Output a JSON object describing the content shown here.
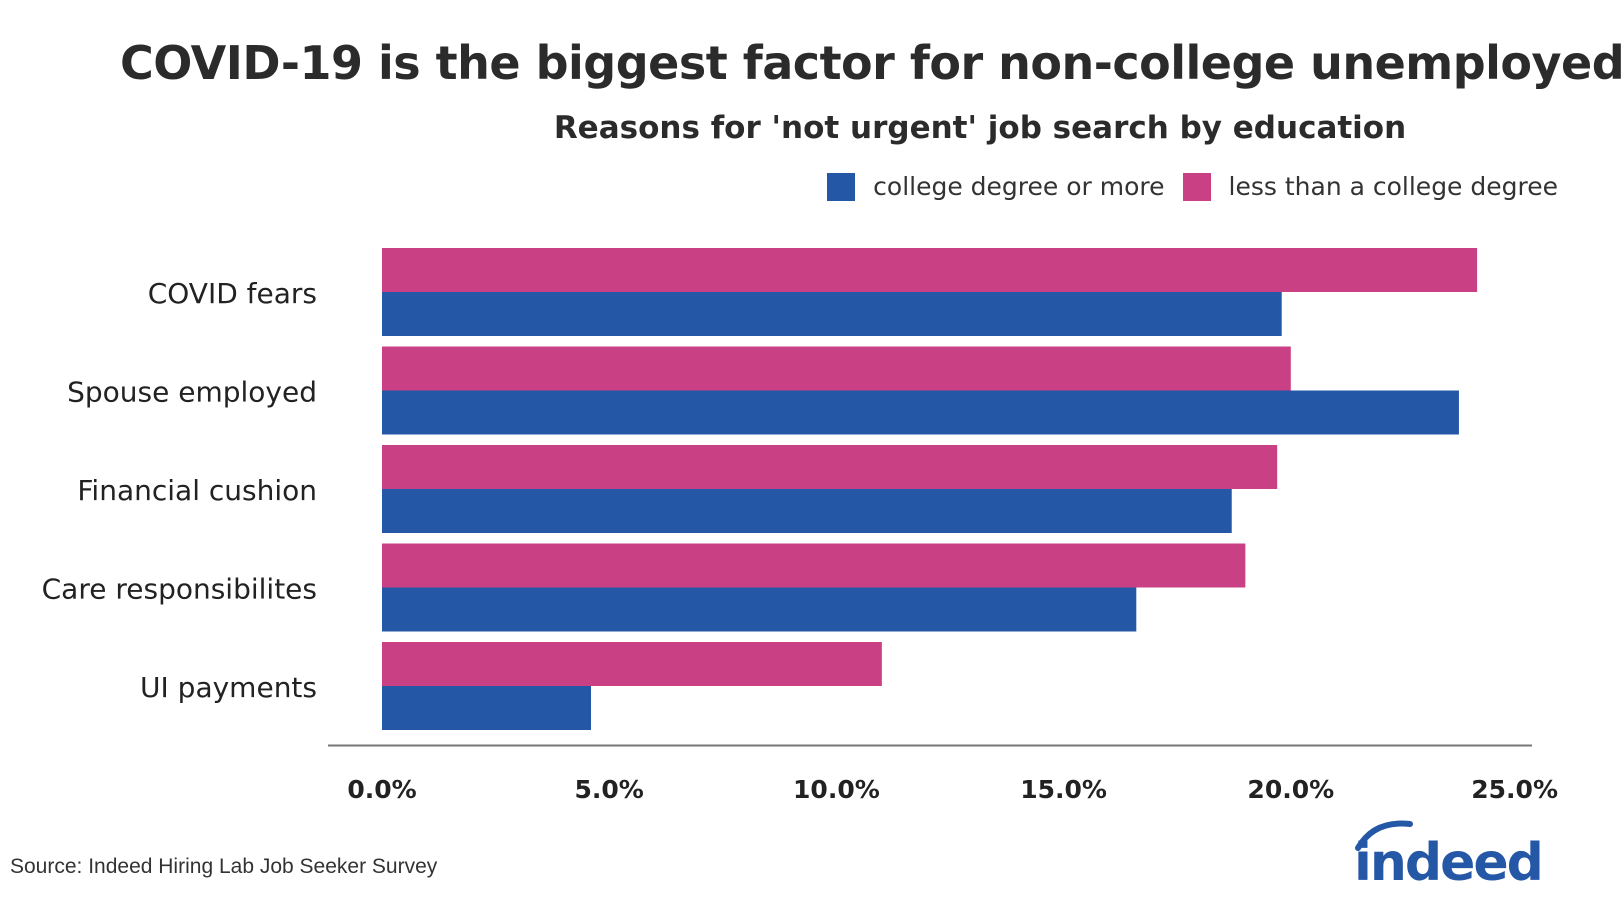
{
  "chart_data": {
    "type": "bar",
    "orientation": "horizontal",
    "title": "COVID-19 is the biggest factor for non-college unemployed",
    "subtitle": "Reasons for 'not urgent' job search by education",
    "categories": [
      "COVID fears",
      "Spouse employed",
      "Financial cushion",
      "Care responsibilites",
      "UI payments"
    ],
    "series": [
      {
        "name": "less than a college degree",
        "color": "#c94085",
        "values": [
          24.1,
          20.0,
          19.7,
          19.0,
          11.0
        ]
      },
      {
        "name": "college degree or more",
        "color": "#2557a7",
        "values": [
          19.8,
          23.7,
          18.7,
          16.6,
          4.6
        ]
      }
    ],
    "xlim": [
      0,
      25
    ],
    "xticks": [
      "0.0%",
      "5.0%",
      "10.0%",
      "15.0%",
      "20.0%",
      "25.0%"
    ],
    "xlabel": "",
    "ylabel": "",
    "grid": false,
    "legend_position": "top-right"
  },
  "legend": {
    "items": [
      {
        "label": "college degree or more",
        "color": "#2557a7"
      },
      {
        "label": "less than a college degree",
        "color": "#c94085"
      }
    ]
  },
  "source": "Source: Indeed Hiring Lab Job Seeker Survey",
  "logo": {
    "text": "indeed",
    "icon": "indeed-logo",
    "color": "#2557a7"
  }
}
